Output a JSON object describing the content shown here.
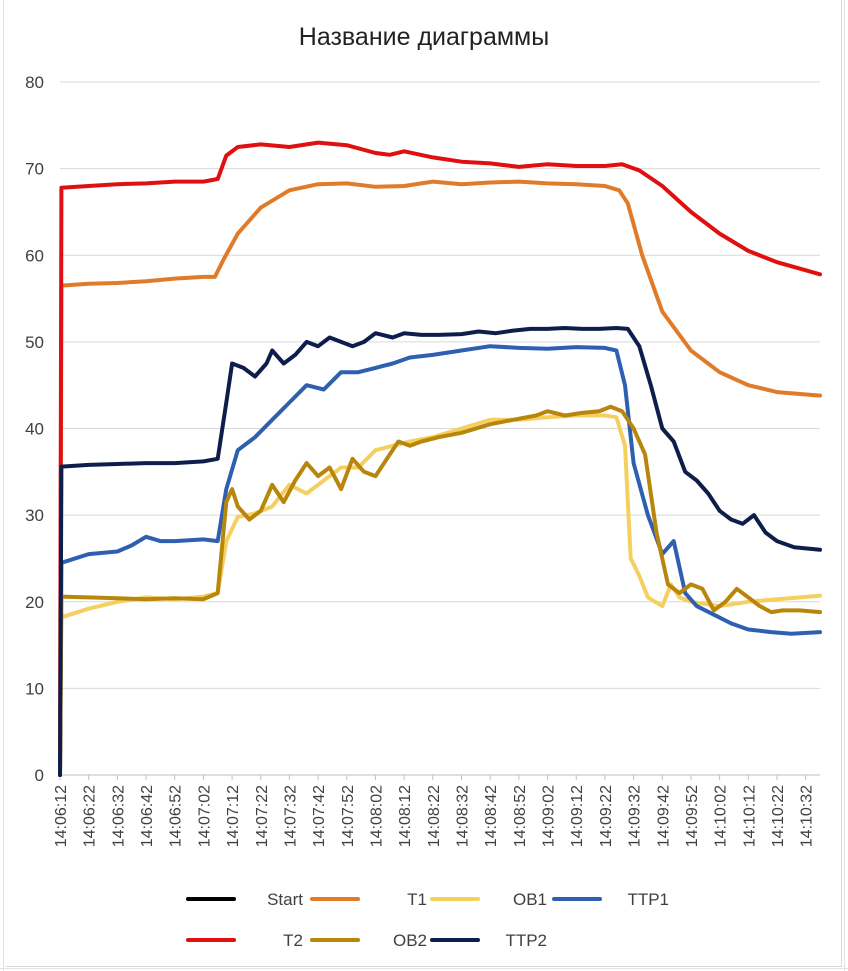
{
  "chart_data": {
    "type": "line",
    "title": "Название диаграммы",
    "xlabel": "",
    "ylabel": "",
    "ylim": [
      0,
      80
    ],
    "yticks": [
      0,
      10,
      20,
      30,
      40,
      50,
      60,
      70,
      80
    ],
    "grid": true,
    "legend_position": "bottom",
    "x_labels": [
      "14:06:12",
      "14:06:22",
      "14:06:32",
      "14:06:42",
      "14:06:52",
      "14:07:02",
      "14:07:12",
      "14:07:22",
      "14:07:32",
      "14:07:42",
      "14:07:52",
      "14:08:02",
      "14:08:12",
      "14:08:22",
      "14:08:32",
      "14:08:42",
      "14:08:52",
      "14:09:02",
      "14:09:12",
      "14:09:22",
      "14:09:32",
      "14:09:42",
      "14:09:52",
      "14:10:02",
      "14:10:12",
      "14:10:22",
      "14:10:32"
    ],
    "x_range_seconds": [
      0,
      265
    ],
    "series": [
      {
        "name": "Start",
        "color": "#000000",
        "points": [
          [
            0,
            0
          ]
        ]
      },
      {
        "name": "T1",
        "color": "#E07B2A",
        "points": [
          [
            0,
            0
          ],
          [
            0.5,
            56.5
          ],
          [
            10,
            56.7
          ],
          [
            20,
            56.8
          ],
          [
            30,
            57.0
          ],
          [
            40,
            57.3
          ],
          [
            50,
            57.5
          ],
          [
            54,
            57.5
          ],
          [
            57,
            59.5
          ],
          [
            62,
            62.5
          ],
          [
            70,
            65.5
          ],
          [
            80,
            67.5
          ],
          [
            90,
            68.2
          ],
          [
            100,
            68.3
          ],
          [
            110,
            67.9
          ],
          [
            120,
            68.0
          ],
          [
            130,
            68.5
          ],
          [
            140,
            68.2
          ],
          [
            150,
            68.4
          ],
          [
            160,
            68.5
          ],
          [
            170,
            68.3
          ],
          [
            180,
            68.2
          ],
          [
            190,
            68.0
          ],
          [
            195,
            67.5
          ],
          [
            198,
            66.0
          ],
          [
            203,
            60.0
          ],
          [
            210,
            53.5
          ],
          [
            220,
            49.0
          ],
          [
            230,
            46.5
          ],
          [
            240,
            45.0
          ],
          [
            250,
            44.2
          ],
          [
            265,
            43.8
          ]
        ]
      },
      {
        "name": "OB1",
        "color": "#F5D060",
        "points": [
          [
            0,
            0
          ],
          [
            0.5,
            18.2
          ],
          [
            10,
            19.2
          ],
          [
            20,
            20.0
          ],
          [
            30,
            20.5
          ],
          [
            40,
            20.3
          ],
          [
            50,
            20.6
          ],
          [
            55,
            21.0
          ],
          [
            58,
            27.0
          ],
          [
            62,
            29.8
          ],
          [
            68,
            30.2
          ],
          [
            74,
            31.0
          ],
          [
            80,
            33.5
          ],
          [
            86,
            32.5
          ],
          [
            92,
            34.0
          ],
          [
            98,
            35.5
          ],
          [
            104,
            35.5
          ],
          [
            110,
            37.5
          ],
          [
            116,
            38.0
          ],
          [
            122,
            38.5
          ],
          [
            130,
            39.0
          ],
          [
            140,
            40.0
          ],
          [
            150,
            41.0
          ],
          [
            160,
            41.0
          ],
          [
            170,
            41.3
          ],
          [
            180,
            41.5
          ],
          [
            190,
            41.5
          ],
          [
            194,
            41.3
          ],
          [
            197,
            38.0
          ],
          [
            199,
            25.0
          ],
          [
            202,
            23.0
          ],
          [
            205,
            20.5
          ],
          [
            210,
            19.5
          ],
          [
            213,
            22.0
          ],
          [
            216,
            20.5
          ],
          [
            220,
            20.0
          ],
          [
            230,
            19.5
          ],
          [
            240,
            20.0
          ],
          [
            250,
            20.3
          ],
          [
            265,
            20.7
          ]
        ]
      },
      {
        "name": "TTP1",
        "color": "#2E5FB0",
        "points": [
          [
            0,
            0
          ],
          [
            0.5,
            24.5
          ],
          [
            10,
            25.5
          ],
          [
            20,
            25.8
          ],
          [
            25,
            26.5
          ],
          [
            30,
            27.5
          ],
          [
            35,
            27.0
          ],
          [
            40,
            27.0
          ],
          [
            50,
            27.2
          ],
          [
            55,
            27.0
          ],
          [
            58,
            33.0
          ],
          [
            62,
            37.5
          ],
          [
            68,
            39.0
          ],
          [
            74,
            41.0
          ],
          [
            80,
            43.0
          ],
          [
            86,
            45.0
          ],
          [
            92,
            44.5
          ],
          [
            98,
            46.5
          ],
          [
            104,
            46.5
          ],
          [
            110,
            47.0
          ],
          [
            116,
            47.5
          ],
          [
            122,
            48.2
          ],
          [
            130,
            48.5
          ],
          [
            140,
            49.0
          ],
          [
            150,
            49.5
          ],
          [
            160,
            49.3
          ],
          [
            170,
            49.2
          ],
          [
            180,
            49.4
          ],
          [
            190,
            49.3
          ],
          [
            194,
            49.0
          ],
          [
            197,
            45.0
          ],
          [
            200,
            36.0
          ],
          [
            205,
            30.0
          ],
          [
            210,
            25.5
          ],
          [
            214,
            27.0
          ],
          [
            218,
            21.0
          ],
          [
            222,
            19.5
          ],
          [
            228,
            18.5
          ],
          [
            234,
            17.5
          ],
          [
            240,
            16.8
          ],
          [
            248,
            16.5
          ],
          [
            255,
            16.3
          ],
          [
            265,
            16.5
          ]
        ]
      },
      {
        "name": "T2",
        "color": "#E01010",
        "points": [
          [
            0,
            0
          ],
          [
            0.5,
            67.8
          ],
          [
            10,
            68.0
          ],
          [
            20,
            68.2
          ],
          [
            30,
            68.3
          ],
          [
            40,
            68.5
          ],
          [
            50,
            68.5
          ],
          [
            55,
            68.8
          ],
          [
            58,
            71.5
          ],
          [
            62,
            72.5
          ],
          [
            70,
            72.8
          ],
          [
            80,
            72.5
          ],
          [
            90,
            73.0
          ],
          [
            100,
            72.7
          ],
          [
            110,
            71.8
          ],
          [
            115,
            71.6
          ],
          [
            120,
            72.0
          ],
          [
            130,
            71.3
          ],
          [
            140,
            70.8
          ],
          [
            150,
            70.6
          ],
          [
            160,
            70.2
          ],
          [
            170,
            70.5
          ],
          [
            180,
            70.3
          ],
          [
            190,
            70.3
          ],
          [
            196,
            70.5
          ],
          [
            202,
            69.8
          ],
          [
            210,
            68.0
          ],
          [
            220,
            65.0
          ],
          [
            230,
            62.5
          ],
          [
            240,
            60.5
          ],
          [
            250,
            59.2
          ],
          [
            265,
            57.8
          ]
        ]
      },
      {
        "name": "OB2",
        "color": "#B8860B",
        "points": [
          [
            0,
            0
          ],
          [
            0.5,
            20.6
          ],
          [
            10,
            20.5
          ],
          [
            20,
            20.4
          ],
          [
            30,
            20.3
          ],
          [
            40,
            20.4
          ],
          [
            50,
            20.3
          ],
          [
            55,
            21.0
          ],
          [
            58,
            31.5
          ],
          [
            60,
            33.0
          ],
          [
            62,
            31.0
          ],
          [
            66,
            29.5
          ],
          [
            70,
            30.5
          ],
          [
            74,
            33.5
          ],
          [
            78,
            31.5
          ],
          [
            82,
            34.0
          ],
          [
            86,
            36.0
          ],
          [
            90,
            34.5
          ],
          [
            94,
            35.5
          ],
          [
            98,
            33.0
          ],
          [
            102,
            36.5
          ],
          [
            106,
            35.0
          ],
          [
            110,
            34.5
          ],
          [
            114,
            36.5
          ],
          [
            118,
            38.5
          ],
          [
            122,
            38.0
          ],
          [
            126,
            38.5
          ],
          [
            132,
            39.0
          ],
          [
            140,
            39.5
          ],
          [
            150,
            40.5
          ],
          [
            158,
            41.0
          ],
          [
            166,
            41.5
          ],
          [
            170,
            42.0
          ],
          [
            176,
            41.5
          ],
          [
            182,
            41.8
          ],
          [
            188,
            42.0
          ],
          [
            192,
            42.5
          ],
          [
            196,
            42.0
          ],
          [
            200,
            40.0
          ],
          [
            204,
            37.0
          ],
          [
            208,
            28.0
          ],
          [
            212,
            22.0
          ],
          [
            216,
            21.0
          ],
          [
            220,
            22.0
          ],
          [
            224,
            21.5
          ],
          [
            228,
            19.0
          ],
          [
            232,
            20.0
          ],
          [
            236,
            21.5
          ],
          [
            240,
            20.5
          ],
          [
            244,
            19.5
          ],
          [
            248,
            18.8
          ],
          [
            252,
            19.0
          ],
          [
            258,
            19.0
          ],
          [
            265,
            18.8
          ]
        ]
      },
      {
        "name": "TTP2",
        "color": "#0E1E4C",
        "points": [
          [
            0,
            0
          ],
          [
            0.5,
            35.6
          ],
          [
            10,
            35.8
          ],
          [
            20,
            35.9
          ],
          [
            30,
            36.0
          ],
          [
            40,
            36.0
          ],
          [
            50,
            36.2
          ],
          [
            55,
            36.5
          ],
          [
            58,
            43.0
          ],
          [
            60,
            47.5
          ],
          [
            64,
            47.0
          ],
          [
            68,
            46.0
          ],
          [
            72,
            47.5
          ],
          [
            74,
            49.0
          ],
          [
            78,
            47.5
          ],
          [
            82,
            48.5
          ],
          [
            86,
            50.0
          ],
          [
            90,
            49.5
          ],
          [
            94,
            50.5
          ],
          [
            98,
            50.0
          ],
          [
            102,
            49.5
          ],
          [
            106,
            50.0
          ],
          [
            110,
            51.0
          ],
          [
            116,
            50.5
          ],
          [
            120,
            51.0
          ],
          [
            126,
            50.8
          ],
          [
            132,
            50.8
          ],
          [
            140,
            50.9
          ],
          [
            146,
            51.2
          ],
          [
            152,
            51.0
          ],
          [
            158,
            51.3
          ],
          [
            164,
            51.5
          ],
          [
            170,
            51.5
          ],
          [
            176,
            51.6
          ],
          [
            182,
            51.5
          ],
          [
            188,
            51.5
          ],
          [
            194,
            51.6
          ],
          [
            198,
            51.5
          ],
          [
            202,
            49.5
          ],
          [
            206,
            45.0
          ],
          [
            210,
            40.0
          ],
          [
            214,
            38.5
          ],
          [
            218,
            35.0
          ],
          [
            222,
            34.0
          ],
          [
            226,
            32.5
          ],
          [
            230,
            30.5
          ],
          [
            234,
            29.5
          ],
          [
            238,
            29.0
          ],
          [
            242,
            30.0
          ],
          [
            246,
            28.0
          ],
          [
            250,
            27.0
          ],
          [
            256,
            26.3
          ],
          [
            265,
            26.0
          ]
        ]
      }
    ],
    "legend": [
      {
        "name": "Start",
        "color": "#000000"
      },
      {
        "name": "T1",
        "color": "#E07B2A"
      },
      {
        "name": "OB1",
        "color": "#F5D060"
      },
      {
        "name": "TTP1",
        "color": "#2E5FB0"
      },
      {
        "name": "T2",
        "color": "#E01010"
      },
      {
        "name": "OB2",
        "color": "#B8860B"
      },
      {
        "name": "TTP2",
        "color": "#0E1E4C"
      }
    ]
  }
}
